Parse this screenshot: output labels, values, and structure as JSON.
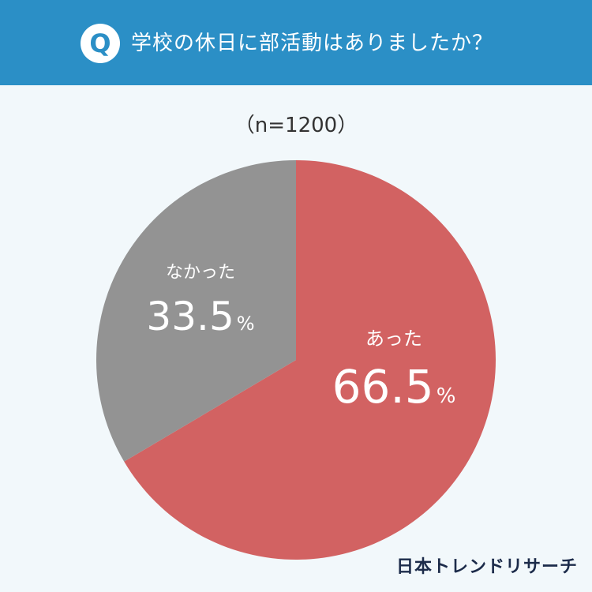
{
  "header": {
    "q_badge": "Q",
    "question": "学校の休日に部活動はありましたか？"
  },
  "sample": "（n=1200）",
  "brand": "日本トレンドリサーチ",
  "colors": {
    "header_bg": "#2b8fc6",
    "page_bg": "#f2f8fb",
    "slice_yes": "#d26262",
    "slice_no": "#939393"
  },
  "chart_data": {
    "type": "pie",
    "slices": [
      {
        "label": "あった",
        "value": 66.5,
        "display": "66.5",
        "unit": "%",
        "color": "#d26262"
      },
      {
        "label": "なかった",
        "value": 33.5,
        "display": "33.5",
        "unit": "%",
        "color": "#939393"
      }
    ],
    "start": "12 o'clock",
    "direction": "clockwise"
  }
}
